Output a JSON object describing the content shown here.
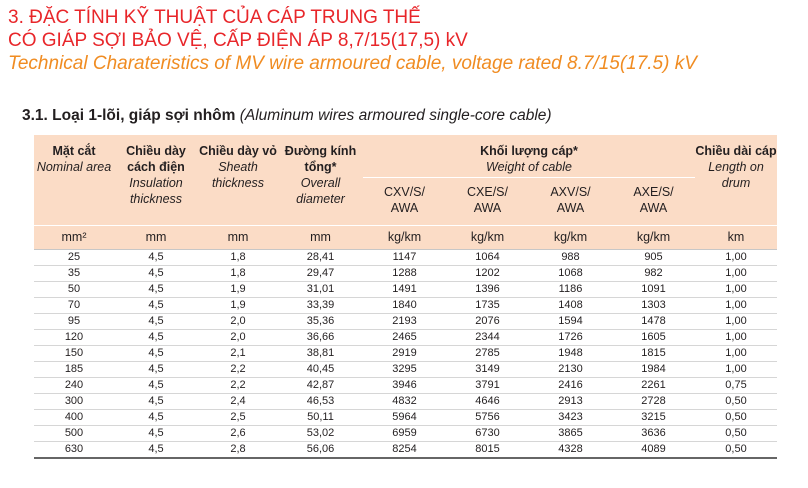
{
  "heading": {
    "line1": "3. ĐẶC TÍNH KỸ THUẬT CỦA CÁP TRUNG THẾ",
    "line2": "CÓ GIÁP SỢI BẢO VỆ, CẤP ĐIỆN ÁP 8,7/15(17,5) kV",
    "line3": "Technical Charateristics of MV wire armoured cable, voltage rated 8.7/15(17.5) kV"
  },
  "subheading": {
    "number_title": "3.1. Loại 1-lõi, giáp sợi nhôm",
    "english": "(Aluminum wires armoured single-core cable)"
  },
  "table": {
    "headers": {
      "section": {
        "vi": "Mặt cắt",
        "en": "Nominal area"
      },
      "insulation": {
        "vi": "Chiều dày cách điện",
        "en": "Insulation thickness"
      },
      "sheath": {
        "vi": "Chiều dày vỏ",
        "en": "Sheath thickness"
      },
      "diameter": {
        "vi": "Đường kính tổng*",
        "en": "Overall diameter"
      },
      "weight": {
        "vi": "Khối lượng cáp*",
        "en": "Weight of cable"
      },
      "length": {
        "vi": "Chiều dài cáp",
        "en": "Length on drum"
      }
    },
    "weight_subheaders": [
      {
        "line1": "CXV/S/",
        "line2": "AWA"
      },
      {
        "line1": "CXE/S/",
        "line2": "AWA"
      },
      {
        "line1": "AXV/S/",
        "line2": "AWA"
      },
      {
        "line1": "AXE/S/",
        "line2": "AWA"
      }
    ],
    "units": [
      "mm²",
      "mm",
      "mm",
      "mm",
      "kg/km",
      "kg/km",
      "kg/km",
      "kg/km",
      "km"
    ],
    "rows": [
      [
        "25",
        "4,5",
        "1,8",
        "28,41",
        "1147",
        "1064",
        "988",
        "905",
        "1,00"
      ],
      [
        "35",
        "4,5",
        "1,8",
        "29,47",
        "1288",
        "1202",
        "1068",
        "982",
        "1,00"
      ],
      [
        "50",
        "4,5",
        "1,9",
        "31,01",
        "1491",
        "1396",
        "1186",
        "1091",
        "1,00"
      ],
      [
        "70",
        "4,5",
        "1,9",
        "33,39",
        "1840",
        "1735",
        "1408",
        "1303",
        "1,00"
      ],
      [
        "95",
        "4,5",
        "2,0",
        "35,36",
        "2193",
        "2076",
        "1594",
        "1478",
        "1,00"
      ],
      [
        "120",
        "4,5",
        "2,0",
        "36,66",
        "2465",
        "2344",
        "1726",
        "1605",
        "1,00"
      ],
      [
        "150",
        "4,5",
        "2,1",
        "38,81",
        "2919",
        "2785",
        "1948",
        "1815",
        "1,00"
      ],
      [
        "185",
        "4,5",
        "2,2",
        "40,45",
        "3295",
        "3149",
        "2130",
        "1984",
        "1,00"
      ],
      [
        "240",
        "4,5",
        "2,2",
        "42,87",
        "3946",
        "3791",
        "2416",
        "2261",
        "0,75"
      ],
      [
        "300",
        "4,5",
        "2,4",
        "46,53",
        "4832",
        "4646",
        "2913",
        "2728",
        "0,50"
      ],
      [
        "400",
        "4,5",
        "2,5",
        "50,11",
        "5964",
        "5756",
        "3423",
        "3215",
        "0,50"
      ],
      [
        "500",
        "4,5",
        "2,6",
        "53,02",
        "6959",
        "6730",
        "3865",
        "3636",
        "0,50"
      ],
      [
        "630",
        "4,5",
        "2,8",
        "56,06",
        "8254",
        "8015",
        "4328",
        "4089",
        "0,50"
      ]
    ]
  },
  "colors": {
    "heading_red": "#e8262a",
    "heading_orange": "#f08c22",
    "header_fill": "#fbdcc6"
  }
}
